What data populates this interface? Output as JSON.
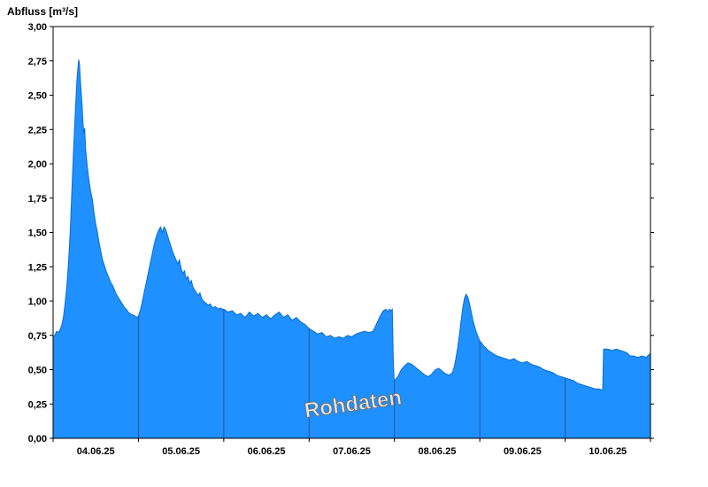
{
  "chart_data": {
    "type": "area",
    "title": "Abfluss [m³/s]",
    "watermark": "Rohdaten",
    "x_axis": {
      "labels": [
        "04.06.25",
        "05.06.25",
        "06.06.25",
        "07.06.25",
        "08.06.25",
        "09.06.25",
        "10.06.25"
      ],
      "lim_days": [
        0,
        7
      ],
      "gridlines_at_days": [
        1,
        2,
        3,
        4,
        5,
        6
      ]
    },
    "y_axis": {
      "lim": [
        0,
        3
      ],
      "tick_step": 0.25,
      "tick_labels": [
        "0,00",
        "0,25",
        "0,50",
        "0,75",
        "1,00",
        "1,25",
        "1,50",
        "1,75",
        "2,00",
        "2,25",
        "2,50",
        "2,75",
        "3,00"
      ]
    },
    "colors": {
      "fill": "#1e90ff",
      "line": "#0c6cd2",
      "day_gridline": "#2c5791",
      "axis": "#000000",
      "watermark_fill": "#e6e6e6",
      "watermark_stroke": "#6f6f6f"
    },
    "series": [
      {
        "name": "Rohdaten",
        "unit": "m³/s",
        "points": [
          [
            0.0,
            0.74
          ],
          [
            0.02,
            0.75
          ],
          [
            0.04,
            0.78
          ],
          [
            0.06,
            0.77
          ],
          [
            0.08,
            0.79
          ],
          [
            0.1,
            0.82
          ],
          [
            0.12,
            0.88
          ],
          [
            0.14,
            0.98
          ],
          [
            0.16,
            1.1
          ],
          [
            0.18,
            1.28
          ],
          [
            0.2,
            1.5
          ],
          [
            0.22,
            1.8
          ],
          [
            0.24,
            2.1
          ],
          [
            0.26,
            2.38
          ],
          [
            0.28,
            2.62
          ],
          [
            0.3,
            2.76
          ],
          [
            0.31,
            2.72
          ],
          [
            0.32,
            2.6
          ],
          [
            0.33,
            2.52
          ],
          [
            0.34,
            2.42
          ],
          [
            0.35,
            2.3
          ],
          [
            0.36,
            2.22
          ],
          [
            0.37,
            2.26
          ],
          [
            0.38,
            2.12
          ],
          [
            0.39,
            2.05
          ],
          [
            0.4,
            1.98
          ],
          [
            0.42,
            1.88
          ],
          [
            0.44,
            1.8
          ],
          [
            0.46,
            1.74
          ],
          [
            0.48,
            1.64
          ],
          [
            0.5,
            1.56
          ],
          [
            0.52,
            1.5
          ],
          [
            0.54,
            1.42
          ],
          [
            0.56,
            1.36
          ],
          [
            0.58,
            1.3
          ],
          [
            0.6,
            1.26
          ],
          [
            0.62,
            1.22
          ],
          [
            0.64,
            1.19
          ],
          [
            0.66,
            1.16
          ],
          [
            0.68,
            1.13
          ],
          [
            0.7,
            1.11
          ],
          [
            0.72,
            1.08
          ],
          [
            0.74,
            1.05
          ],
          [
            0.76,
            1.03
          ],
          [
            0.78,
            1.01
          ],
          [
            0.8,
            0.99
          ],
          [
            0.82,
            0.97
          ],
          [
            0.84,
            0.95
          ],
          [
            0.86,
            0.94
          ],
          [
            0.88,
            0.92
          ],
          [
            0.9,
            0.91
          ],
          [
            0.92,
            0.9
          ],
          [
            0.94,
            0.9
          ],
          [
            0.96,
            0.89
          ],
          [
            0.98,
            0.88
          ],
          [
            1.0,
            0.89
          ],
          [
            1.02,
            0.93
          ],
          [
            1.04,
            0.98
          ],
          [
            1.06,
            1.04
          ],
          [
            1.08,
            1.1
          ],
          [
            1.1,
            1.16
          ],
          [
            1.12,
            1.22
          ],
          [
            1.14,
            1.28
          ],
          [
            1.16,
            1.34
          ],
          [
            1.18,
            1.4
          ],
          [
            1.2,
            1.45
          ],
          [
            1.22,
            1.49
          ],
          [
            1.24,
            1.52
          ],
          [
            1.26,
            1.54
          ],
          [
            1.28,
            1.5
          ],
          [
            1.3,
            1.54
          ],
          [
            1.32,
            1.52
          ],
          [
            1.34,
            1.48
          ],
          [
            1.36,
            1.44
          ],
          [
            1.38,
            1.4
          ],
          [
            1.4,
            1.36
          ],
          [
            1.42,
            1.33
          ],
          [
            1.44,
            1.3
          ],
          [
            1.46,
            1.27
          ],
          [
            1.48,
            1.3
          ],
          [
            1.5,
            1.24
          ],
          [
            1.52,
            1.2
          ],
          [
            1.54,
            1.22
          ],
          [
            1.56,
            1.16
          ],
          [
            1.58,
            1.18
          ],
          [
            1.6,
            1.13
          ],
          [
            1.62,
            1.15
          ],
          [
            1.64,
            1.1
          ],
          [
            1.66,
            1.08
          ],
          [
            1.68,
            1.06
          ],
          [
            1.7,
            1.04
          ],
          [
            1.72,
            1.06
          ],
          [
            1.74,
            1.02
          ],
          [
            1.76,
            1.0
          ],
          [
            1.78,
            0.99
          ],
          [
            1.8,
            0.98
          ],
          [
            1.82,
            0.97
          ],
          [
            1.84,
            0.98
          ],
          [
            1.86,
            0.96
          ],
          [
            1.88,
            0.95
          ],
          [
            1.9,
            0.96
          ],
          [
            1.92,
            0.95
          ],
          [
            1.94,
            0.94
          ],
          [
            1.96,
            0.95
          ],
          [
            1.98,
            0.94
          ],
          [
            2.0,
            0.94
          ],
          [
            2.05,
            0.92
          ],
          [
            2.1,
            0.93
          ],
          [
            2.15,
            0.9
          ],
          [
            2.2,
            0.91
          ],
          [
            2.25,
            0.88
          ],
          [
            2.3,
            0.92
          ],
          [
            2.35,
            0.89
          ],
          [
            2.4,
            0.91
          ],
          [
            2.45,
            0.88
          ],
          [
            2.5,
            0.9
          ],
          [
            2.55,
            0.87
          ],
          [
            2.6,
            0.9
          ],
          [
            2.65,
            0.92
          ],
          [
            2.7,
            0.88
          ],
          [
            2.75,
            0.9
          ],
          [
            2.8,
            0.86
          ],
          [
            2.85,
            0.88
          ],
          [
            2.9,
            0.85
          ],
          [
            2.95,
            0.83
          ],
          [
            3.0,
            0.8
          ],
          [
            3.05,
            0.78
          ],
          [
            3.1,
            0.76
          ],
          [
            3.15,
            0.77
          ],
          [
            3.2,
            0.74
          ],
          [
            3.25,
            0.75
          ],
          [
            3.3,
            0.73
          ],
          [
            3.35,
            0.74
          ],
          [
            3.4,
            0.73
          ],
          [
            3.45,
            0.75
          ],
          [
            3.5,
            0.74
          ],
          [
            3.55,
            0.76
          ],
          [
            3.6,
            0.77
          ],
          [
            3.65,
            0.78
          ],
          [
            3.7,
            0.77
          ],
          [
            3.75,
            0.78
          ],
          [
            3.78,
            0.82
          ],
          [
            3.81,
            0.86
          ],
          [
            3.84,
            0.9
          ],
          [
            3.87,
            0.93
          ],
          [
            3.9,
            0.94
          ],
          [
            3.92,
            0.92
          ],
          [
            3.94,
            0.94
          ],
          [
            3.96,
            0.93
          ],
          [
            3.975,
            0.94
          ],
          [
            3.985,
            0.6
          ],
          [
            3.995,
            0.44
          ],
          [
            4.0,
            0.42
          ],
          [
            4.04,
            0.45
          ],
          [
            4.08,
            0.5
          ],
          [
            4.12,
            0.53
          ],
          [
            4.16,
            0.55
          ],
          [
            4.2,
            0.54
          ],
          [
            4.24,
            0.52
          ],
          [
            4.28,
            0.5
          ],
          [
            4.32,
            0.48
          ],
          [
            4.36,
            0.46
          ],
          [
            4.4,
            0.45
          ],
          [
            4.44,
            0.47
          ],
          [
            4.48,
            0.5
          ],
          [
            4.52,
            0.51
          ],
          [
            4.56,
            0.49
          ],
          [
            4.6,
            0.47
          ],
          [
            4.64,
            0.46
          ],
          [
            4.68,
            0.48
          ],
          [
            4.7,
            0.52
          ],
          [
            4.72,
            0.58
          ],
          [
            4.74,
            0.66
          ],
          [
            4.76,
            0.75
          ],
          [
            4.78,
            0.85
          ],
          [
            4.8,
            0.95
          ],
          [
            4.82,
            1.02
          ],
          [
            4.84,
            1.05
          ],
          [
            4.86,
            1.03
          ],
          [
            4.88,
            0.98
          ],
          [
            4.9,
            0.92
          ],
          [
            4.92,
            0.86
          ],
          [
            4.94,
            0.81
          ],
          [
            4.96,
            0.77
          ],
          [
            4.98,
            0.74
          ],
          [
            5.0,
            0.71
          ],
          [
            5.05,
            0.67
          ],
          [
            5.1,
            0.64
          ],
          [
            5.15,
            0.62
          ],
          [
            5.2,
            0.6
          ],
          [
            5.25,
            0.59
          ],
          [
            5.3,
            0.58
          ],
          [
            5.35,
            0.57
          ],
          [
            5.4,
            0.58
          ],
          [
            5.45,
            0.56
          ],
          [
            5.5,
            0.55
          ],
          [
            5.55,
            0.56
          ],
          [
            5.6,
            0.54
          ],
          [
            5.65,
            0.53
          ],
          [
            5.7,
            0.52
          ],
          [
            5.75,
            0.5
          ],
          [
            5.8,
            0.49
          ],
          [
            5.85,
            0.48
          ],
          [
            5.9,
            0.46
          ],
          [
            5.95,
            0.45
          ],
          [
            6.0,
            0.44
          ],
          [
            6.05,
            0.43
          ],
          [
            6.1,
            0.42
          ],
          [
            6.15,
            0.4
          ],
          [
            6.2,
            0.39
          ],
          [
            6.25,
            0.38
          ],
          [
            6.3,
            0.37
          ],
          [
            6.35,
            0.36
          ],
          [
            6.4,
            0.36
          ],
          [
            6.44,
            0.35
          ],
          [
            6.45,
            0.65
          ],
          [
            6.5,
            0.65
          ],
          [
            6.55,
            0.64
          ],
          [
            6.6,
            0.65
          ],
          [
            6.65,
            0.64
          ],
          [
            6.7,
            0.63
          ],
          [
            6.73,
            0.62
          ],
          [
            6.76,
            0.6
          ],
          [
            6.8,
            0.6
          ],
          [
            6.85,
            0.59
          ],
          [
            6.9,
            0.6
          ],
          [
            6.95,
            0.59
          ],
          [
            7.0,
            0.62
          ]
        ]
      }
    ]
  }
}
